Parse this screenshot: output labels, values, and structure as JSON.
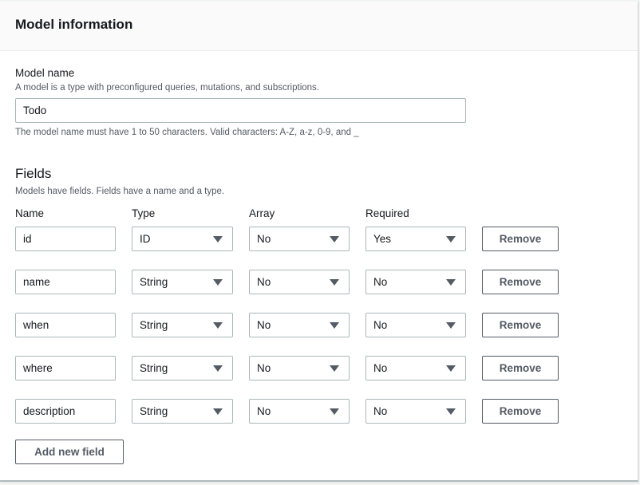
{
  "header": {
    "title": "Model information"
  },
  "model": {
    "label": "Model name",
    "description": "A model is a type with preconfigured queries, mutations, and subscriptions.",
    "value": "Todo",
    "hint": "The model name must have 1 to 50 characters. Valid characters: A-Z, a-z, 0-9, and _"
  },
  "fields": {
    "title": "Fields",
    "description": "Models have fields. Fields have a name and a type.",
    "columns": {
      "name": "Name",
      "type": "Type",
      "array": "Array",
      "required": "Required"
    },
    "rows": [
      {
        "name": "id",
        "type": "ID",
        "array": "No",
        "required": "Yes",
        "remove": "Remove"
      },
      {
        "name": "name",
        "type": "String",
        "array": "No",
        "required": "No",
        "remove": "Remove"
      },
      {
        "name": "when",
        "type": "String",
        "array": "No",
        "required": "No",
        "remove": "Remove"
      },
      {
        "name": "where",
        "type": "String",
        "array": "No",
        "required": "No",
        "remove": "Remove"
      },
      {
        "name": "description",
        "type": "String",
        "array": "No",
        "required": "No",
        "remove": "Remove"
      }
    ],
    "add_label": "Add new field"
  }
}
